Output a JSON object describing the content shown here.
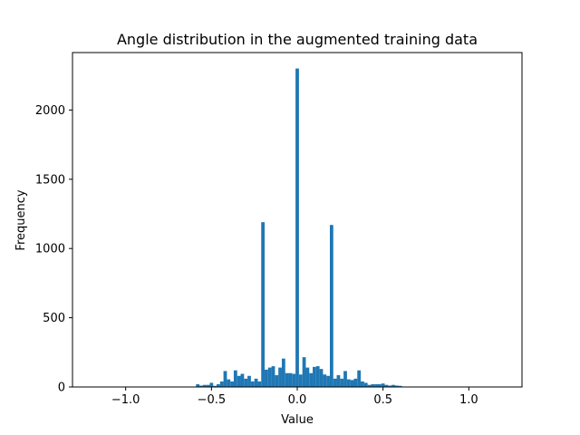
{
  "chart_data": {
    "type": "bar",
    "title": "Angle distribution in the augmented training data",
    "xlabel": "Value",
    "ylabel": "Frequency",
    "xlim": [
      -1.31,
      1.31
    ],
    "ylim": [
      0,
      2415
    ],
    "x_ticks": [
      -1.0,
      -0.5,
      0.0,
      0.5,
      1.0
    ],
    "x_tick_labels": [
      "−1.0",
      "−0.5",
      "0.0",
      "0.5",
      "1.0"
    ],
    "y_ticks": [
      0,
      500,
      1000,
      1500,
      2000
    ],
    "y_tick_labels": [
      "0",
      "500",
      "1000",
      "1500",
      "2000"
    ],
    "grid": false,
    "bar_color": "#1f77b4",
    "bin_width": 0.02,
    "bins": [
      {
        "x": -0.58,
        "y": 20
      },
      {
        "x": -0.56,
        "y": 10
      },
      {
        "x": -0.54,
        "y": 15
      },
      {
        "x": -0.52,
        "y": 15
      },
      {
        "x": -0.5,
        "y": 30
      },
      {
        "x": -0.48,
        "y": 8
      },
      {
        "x": -0.46,
        "y": 20
      },
      {
        "x": -0.44,
        "y": 40
      },
      {
        "x": -0.42,
        "y": 115
      },
      {
        "x": -0.4,
        "y": 55
      },
      {
        "x": -0.38,
        "y": 40
      },
      {
        "x": -0.36,
        "y": 120
      },
      {
        "x": -0.34,
        "y": 80
      },
      {
        "x": -0.32,
        "y": 95
      },
      {
        "x": -0.3,
        "y": 60
      },
      {
        "x": -0.28,
        "y": 80
      },
      {
        "x": -0.26,
        "y": 40
      },
      {
        "x": -0.24,
        "y": 60
      },
      {
        "x": -0.22,
        "y": 40
      },
      {
        "x": -0.2,
        "y": 1190
      },
      {
        "x": -0.18,
        "y": 125
      },
      {
        "x": -0.16,
        "y": 140
      },
      {
        "x": -0.14,
        "y": 150
      },
      {
        "x": -0.12,
        "y": 85
      },
      {
        "x": -0.1,
        "y": 140
      },
      {
        "x": -0.08,
        "y": 205
      },
      {
        "x": -0.06,
        "y": 100
      },
      {
        "x": -0.04,
        "y": 100
      },
      {
        "x": -0.02,
        "y": 95
      },
      {
        "x": 0.0,
        "y": 2300
      },
      {
        "x": 0.02,
        "y": 90
      },
      {
        "x": 0.04,
        "y": 215
      },
      {
        "x": 0.06,
        "y": 140
      },
      {
        "x": 0.08,
        "y": 100
      },
      {
        "x": 0.1,
        "y": 145
      },
      {
        "x": 0.12,
        "y": 150
      },
      {
        "x": 0.14,
        "y": 130
      },
      {
        "x": 0.16,
        "y": 90
      },
      {
        "x": 0.18,
        "y": 80
      },
      {
        "x": 0.2,
        "y": 1170
      },
      {
        "x": 0.22,
        "y": 60
      },
      {
        "x": 0.24,
        "y": 85
      },
      {
        "x": 0.26,
        "y": 60
      },
      {
        "x": 0.28,
        "y": 115
      },
      {
        "x": 0.3,
        "y": 55
      },
      {
        "x": 0.32,
        "y": 50
      },
      {
        "x": 0.34,
        "y": 60
      },
      {
        "x": 0.36,
        "y": 120
      },
      {
        "x": 0.38,
        "y": 40
      },
      {
        "x": 0.4,
        "y": 30
      },
      {
        "x": 0.42,
        "y": 15
      },
      {
        "x": 0.44,
        "y": 20
      },
      {
        "x": 0.46,
        "y": 20
      },
      {
        "x": 0.48,
        "y": 20
      },
      {
        "x": 0.5,
        "y": 25
      },
      {
        "x": 0.52,
        "y": 15
      },
      {
        "x": 0.54,
        "y": 10
      },
      {
        "x": 0.56,
        "y": 15
      },
      {
        "x": 0.58,
        "y": 10
      },
      {
        "x": 0.6,
        "y": 8
      }
    ]
  }
}
